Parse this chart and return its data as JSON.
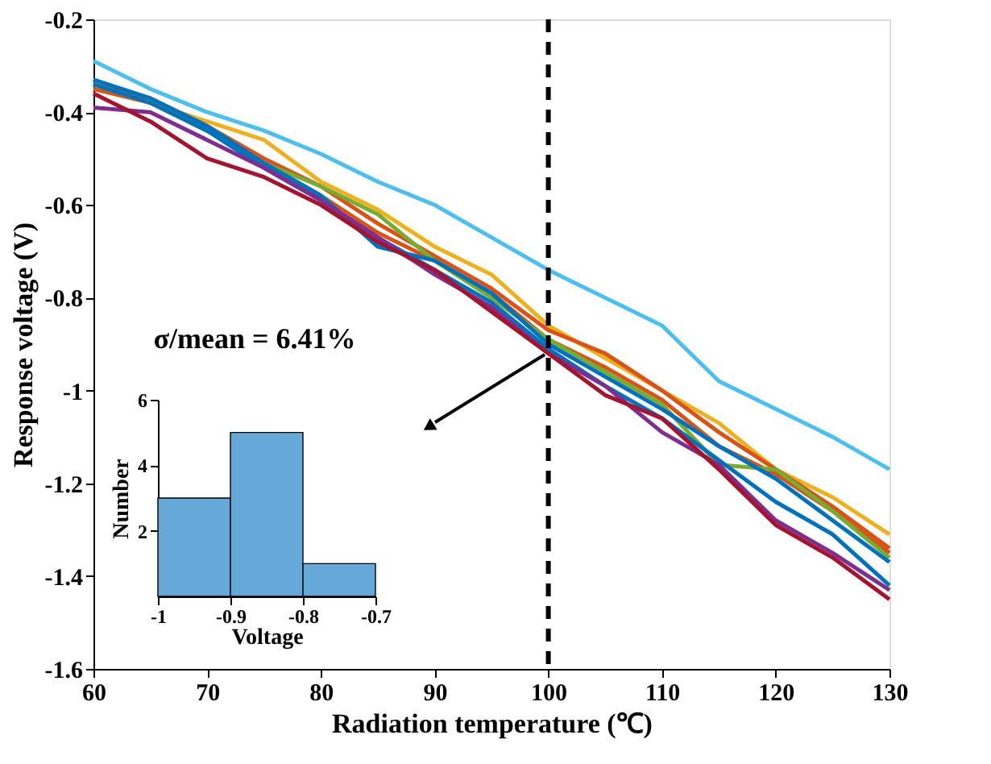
{
  "chart_data": [
    {
      "type": "line",
      "xlabel": "Radiation temperature (℃)",
      "ylabel": "Response voltage (V)",
      "x": [
        60,
        65,
        70,
        75,
        80,
        85,
        90,
        95,
        100,
        105,
        110,
        115,
        120,
        125,
        130
      ],
      "xlim": [
        60,
        130
      ],
      "xticks": [
        60,
        70,
        80,
        90,
        100,
        110,
        120,
        130
      ],
      "ylim": [
        -1.6,
        -0.2
      ],
      "yticks": [
        -1.6,
        -1.4,
        -1.2,
        -1,
        -0.8,
        -0.6,
        -0.4,
        -0.2
      ],
      "grid": false,
      "legend": false,
      "line_style": "solid",
      "marker": "none",
      "ref_lines": [
        {
          "axis": "x",
          "value": 100,
          "color": "#000000",
          "line_style": "dashed"
        }
      ],
      "annotations": [
        "σ/mean = 6.41%"
      ],
      "series": [
        {
          "color": "#4DBEEE",
          "values": [
            -0.29,
            -0.35,
            -0.4,
            -0.44,
            -0.49,
            -0.55,
            -0.6,
            -0.67,
            -0.74,
            -0.8,
            -0.86,
            -0.98,
            -1.04,
            -1.1,
            -1.17
          ]
        },
        {
          "color": "#EDB120",
          "values": [
            -0.33,
            -0.38,
            -0.42,
            -0.46,
            -0.55,
            -0.61,
            -0.69,
            -0.75,
            -0.86,
            -0.93,
            -1.0,
            -1.07,
            -1.17,
            -1.23,
            -1.31
          ]
        },
        {
          "color": "#D95319",
          "values": [
            -0.34,
            -0.37,
            -0.43,
            -0.5,
            -0.56,
            -0.64,
            -0.71,
            -0.78,
            -0.87,
            -0.92,
            -1.0,
            -1.09,
            -1.17,
            -1.25,
            -1.34
          ]
        },
        {
          "color": "#D95319",
          "values": [
            -0.35,
            -0.38,
            -0.44,
            -0.51,
            -0.58,
            -0.66,
            -0.72,
            -0.79,
            -0.89,
            -0.95,
            -1.02,
            -1.12,
            -1.18,
            -1.26,
            -1.35
          ]
        },
        {
          "color": "#77AC30",
          "values": [
            -0.34,
            -0.38,
            -0.44,
            -0.51,
            -0.56,
            -0.62,
            -0.72,
            -0.8,
            -0.89,
            -0.96,
            -1.03,
            -1.16,
            -1.17,
            -1.26,
            -1.36
          ]
        },
        {
          "color": "#0072BD",
          "values": [
            -0.33,
            -0.37,
            -0.43,
            -0.51,
            -0.58,
            -0.69,
            -0.72,
            -0.79,
            -0.9,
            -0.97,
            -1.04,
            -1.12,
            -1.19,
            -1.28,
            -1.37
          ]
        },
        {
          "color": "#0072BD",
          "values": [
            -0.34,
            -0.38,
            -0.44,
            -0.52,
            -0.59,
            -0.67,
            -0.74,
            -0.81,
            -0.91,
            -0.99,
            -1.06,
            -1.15,
            -1.24,
            -1.31,
            -1.42
          ]
        },
        {
          "color": "#7E2F8E",
          "values": [
            -0.39,
            -0.4,
            -0.46,
            -0.52,
            -0.59,
            -0.67,
            -0.75,
            -0.82,
            -0.92,
            -0.99,
            -1.09,
            -1.16,
            -1.28,
            -1.35,
            -1.43
          ]
        },
        {
          "color": "#A2142F",
          "values": [
            -0.36,
            -0.42,
            -0.5,
            -0.54,
            -0.6,
            -0.68,
            -0.74,
            -0.83,
            -0.92,
            -1.01,
            -1.06,
            -1.17,
            -1.29,
            -1.36,
            -1.45
          ]
        }
      ]
    },
    {
      "type": "histogram",
      "xlabel": "Voltage",
      "ylabel": "Number",
      "bins": [
        -1,
        -0.9,
        -0.8,
        -0.7
      ],
      "values": [
        3,
        5,
        1
      ],
      "color": "#66A9D8",
      "xlim": [
        -1,
        -0.7
      ],
      "xticks": [
        -1,
        -0.9,
        -0.8,
        -0.7
      ],
      "ylim": [
        0,
        6
      ],
      "yticks": [
        2,
        4,
        6
      ],
      "grid": false
    }
  ]
}
